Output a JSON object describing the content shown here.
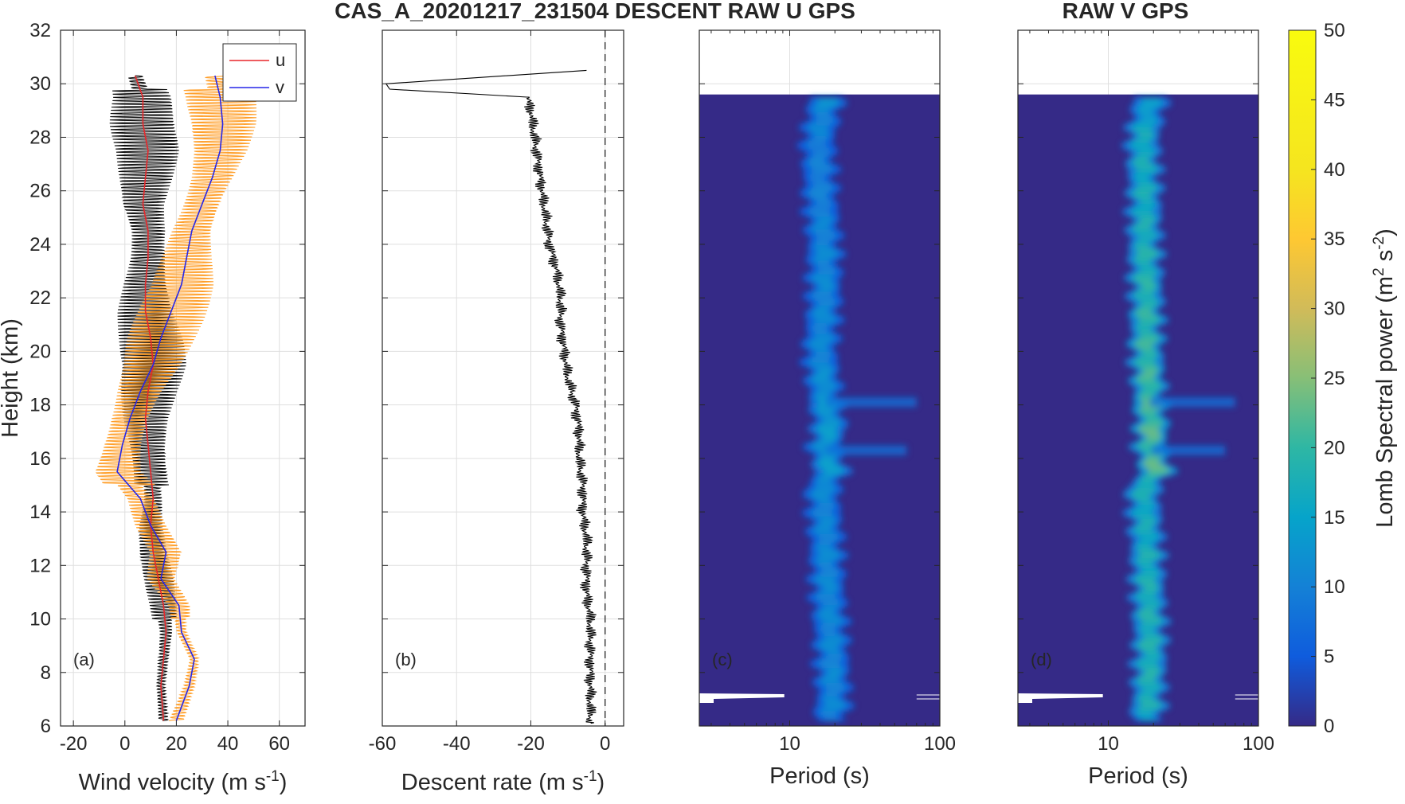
{
  "titles": {
    "main": "CAS_A_20201217_231504 DESCENT   RAW U GPS",
    "right": "RAW V GPS"
  },
  "chart_data": [
    {
      "id": "a",
      "type": "line",
      "panel_label": "(a)",
      "xlabel": "Wind velocity (m s⁻¹)",
      "ylabel": "Height (km)",
      "xlim": [
        -25,
        70
      ],
      "ylim": [
        6,
        32
      ],
      "xticks": [
        -20,
        0,
        20,
        40,
        60
      ],
      "yticks": [
        6,
        8,
        10,
        12,
        14,
        16,
        18,
        20,
        22,
        24,
        26,
        28,
        30,
        32
      ],
      "grid": true,
      "legend": {
        "placement": "top-right",
        "entries": [
          "u",
          "v"
        ]
      },
      "series": [
        {
          "name": "u",
          "color": "#e8262a",
          "y": [
            30.3,
            29.5,
            28.5,
            27.5,
            26.5,
            25.5,
            24.5,
            23.5,
            22.5,
            21.5,
            20.5,
            19.5,
            18.5,
            17.5,
            16.5,
            15.5,
            14.5,
            13.5,
            12.5,
            11.5,
            10.5,
            9.5,
            8.5,
            7.5,
            6.2
          ],
          "x": [
            4,
            7,
            7,
            9,
            8,
            7,
            9,
            9,
            8,
            8,
            10,
            11,
            9,
            8,
            9,
            10,
            11,
            10,
            11,
            13,
            15,
            16,
            15,
            14,
            15
          ]
        },
        {
          "name": "v",
          "color": "#2626e8",
          "y": [
            30.3,
            29.5,
            28.5,
            27.5,
            26.5,
            25.5,
            24.5,
            23.5,
            22.5,
            21.5,
            20.5,
            19.5,
            18.5,
            17.5,
            16.5,
            15.5,
            14.5,
            13.5,
            12.5,
            11.5,
            10.5,
            9.5,
            8.5,
            7.5,
            6.2
          ],
          "x": [
            35,
            37,
            38,
            37,
            34,
            30,
            26,
            24,
            22,
            18,
            14,
            11,
            6,
            2,
            -1,
            -3,
            6,
            10,
            16,
            14,
            21,
            22,
            27,
            25,
            20
          ]
        }
      ],
      "raw_traces": [
        {
          "component": "u",
          "color": "#000000",
          "amplitude": 13
        },
        {
          "component": "v",
          "color": "#ff9a1f",
          "amplitude": 14
        }
      ]
    },
    {
      "id": "b",
      "type": "line",
      "panel_label": "(b)",
      "xlabel": "Descent rate (m s⁻¹)",
      "xlim": [
        -60,
        5
      ],
      "ylim": [
        6,
        32
      ],
      "xticks": [
        -60,
        -40,
        -20,
        0
      ],
      "grid": true,
      "series": [
        {
          "color": "#000000",
          "y": [
            30.5,
            30.0,
            29.8,
            29.5,
            29.0,
            28.0,
            27.0,
            26.0,
            25.0,
            24.0,
            23.0,
            22.0,
            21.0,
            20.0,
            19.0,
            18.0,
            17.0,
            16.0,
            15.0,
            14.0,
            13.0,
            12.0,
            11.0,
            10.0,
            9.0,
            8.0,
            7.0,
            6.1
          ],
          "x": [
            -5,
            -59,
            -58,
            -21,
            -20,
            -19,
            -18,
            -17,
            -16,
            -15,
            -13,
            -12,
            -12,
            -11,
            -10,
            -8,
            -7,
            -7,
            -6,
            -6,
            -5,
            -5,
            -5,
            -4,
            -4,
            -4,
            -4,
            -4
          ]
        }
      ],
      "reference_line": {
        "x": 0,
        "style": "dashed"
      }
    },
    {
      "id": "c",
      "type": "heatmap",
      "panel_label": "(c)",
      "xlabel": "Period (s)",
      "x_scale": "log",
      "xlim": [
        2.5,
        100
      ],
      "xticks": [
        10,
        100
      ],
      "ylim": [
        6,
        32
      ],
      "data_top_km": 29.6,
      "ridge": {
        "y": [
          29.5,
          28,
          26,
          24,
          22,
          20,
          18,
          17.2,
          16.5,
          15.5,
          15,
          13,
          11,
          9,
          7,
          6.2
        ],
        "period": [
          17.5,
          15.5,
          16.0,
          17.0,
          17.0,
          16.0,
          17.5,
          18.5,
          17.0,
          19.0,
          16.5,
          17.5,
          18.0,
          19.0,
          19.5,
          18.5
        ],
        "power": [
          12,
          10,
          10,
          11,
          11,
          11,
          13,
          14,
          13,
          14,
          11,
          11,
          11,
          11,
          11,
          10
        ]
      }
    },
    {
      "id": "d",
      "type": "heatmap",
      "panel_label": "(d)",
      "xlabel": "Period (s)",
      "x_scale": "log",
      "xlim": [
        2.5,
        100
      ],
      "xticks": [
        10,
        100
      ],
      "ylim": [
        6,
        32
      ],
      "data_top_km": 29.6,
      "ridge": {
        "y": [
          29.5,
          28,
          26,
          24,
          22,
          20,
          18,
          17.2,
          16.5,
          15.5,
          15,
          13,
          11,
          9,
          7,
          6.2
        ],
        "period": [
          19.0,
          17.0,
          17.5,
          17.5,
          18.0,
          18.0,
          19.0,
          19.5,
          19.0,
          21.0,
          17.0,
          18.0,
          18.5,
          19.0,
          18.5,
          18.0
        ],
        "power": [
          13,
          17,
          17,
          18,
          19,
          20,
          21,
          22,
          21,
          22,
          17,
          17,
          18,
          18,
          18,
          15
        ]
      }
    }
  ],
  "colorbar": {
    "label": "Lomb Spectral power (m² s⁻²)",
    "ticks": [
      0,
      5,
      10,
      15,
      20,
      25,
      30,
      35,
      40,
      45,
      50
    ],
    "range": [
      0,
      50
    ],
    "colormap": "parula"
  }
}
